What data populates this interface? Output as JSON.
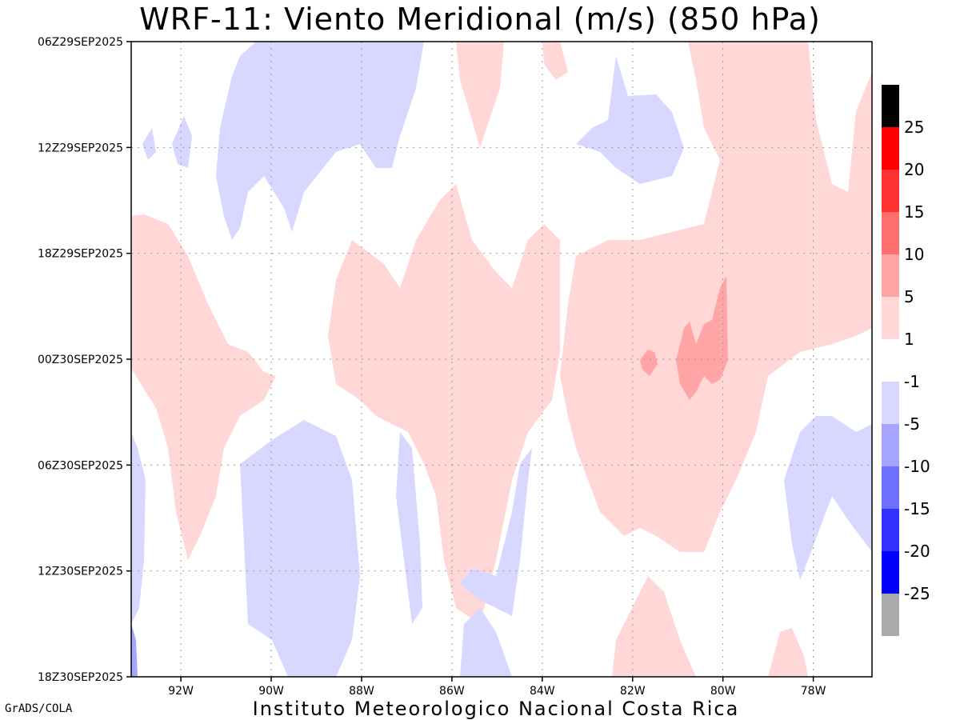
{
  "title": "WRF-11: Viento Meridional (m/s) (850 hPa)",
  "footer_left": "GrADS/COLA",
  "footer_center": "Instituto Meteorologico Nacional Costa Rica",
  "chart_data": {
    "type": "heatmap",
    "title": "WRF-11: Viento Meridional (m/s) (850 hPa)",
    "xlabel": "",
    "ylabel": "",
    "x_ticks": [
      "92W",
      "90W",
      "88W",
      "86W",
      "84W",
      "82W",
      "80W",
      "78W"
    ],
    "x_tick_values": [
      -92,
      -90,
      -88,
      -86,
      -84,
      -82,
      -80,
      -78
    ],
    "xlim": [
      -93.1,
      -76.7
    ],
    "y_ticks": [
      "06Z29SEP2025",
      "12Z29SEP2025",
      "18Z29SEP2025",
      "00Z30SEP2025",
      "06Z30SEP2025",
      "12Z30SEP2025",
      "18Z30SEP2025"
    ],
    "ylim": [
      "06Z29SEP2025",
      "18Z30SEP2025"
    ],
    "grid": true,
    "legend_placement": "right",
    "colorbar": {
      "levels_labels": [
        "25",
        "20",
        "15",
        "10",
        "5",
        "1",
        "-1",
        "-5",
        "-10",
        "-15",
        "-20",
        "-25"
      ],
      "colors_top_to_bottom": [
        "#000000",
        "#ff0000",
        "#ff3232",
        "#ff6e6e",
        "#ffa5a5",
        "#ffd7d7",
        "#ffffff",
        "#d7d7ff",
        "#a5a5ff",
        "#6e6eff",
        "#3232ff",
        "#0000ff",
        "#aaaaaa"
      ]
    },
    "regions": [
      {
        "sign": "positive",
        "level": "1 to 5",
        "location": "west edge 92-93W, 18Z29 to 06Z30"
      },
      {
        "sign": "positive",
        "level": "1 to 5",
        "location": "88W-85W, 18Z29 to 12Z30"
      },
      {
        "sign": "positive",
        "level": "1 to 5",
        "location": "83W-77W, 12Z29 to 12Z30"
      },
      {
        "sign": "positive",
        "level": "5 to 10",
        "location": "81.5W-80W, around 00Z30SEP2025"
      },
      {
        "sign": "negative",
        "level": "-1 to -5",
        "location": "91W-87W, 06Z29 to 15Z29"
      },
      {
        "sign": "negative",
        "level": "-1 to -5",
        "location": "90W-88.5W, 05Z30 to 18Z30"
      },
      {
        "sign": "negative",
        "level": "-1 to -5",
        "location": "82W-81W, 09Z29 to 14Z29"
      },
      {
        "sign": "negative",
        "level": "-1 to -5",
        "location": "79W-77W, 06Z30 to 12Z30"
      },
      {
        "sign": "negative",
        "level": "-5 to -10",
        "location": "93W, near 18Z30SEP2025"
      }
    ]
  }
}
